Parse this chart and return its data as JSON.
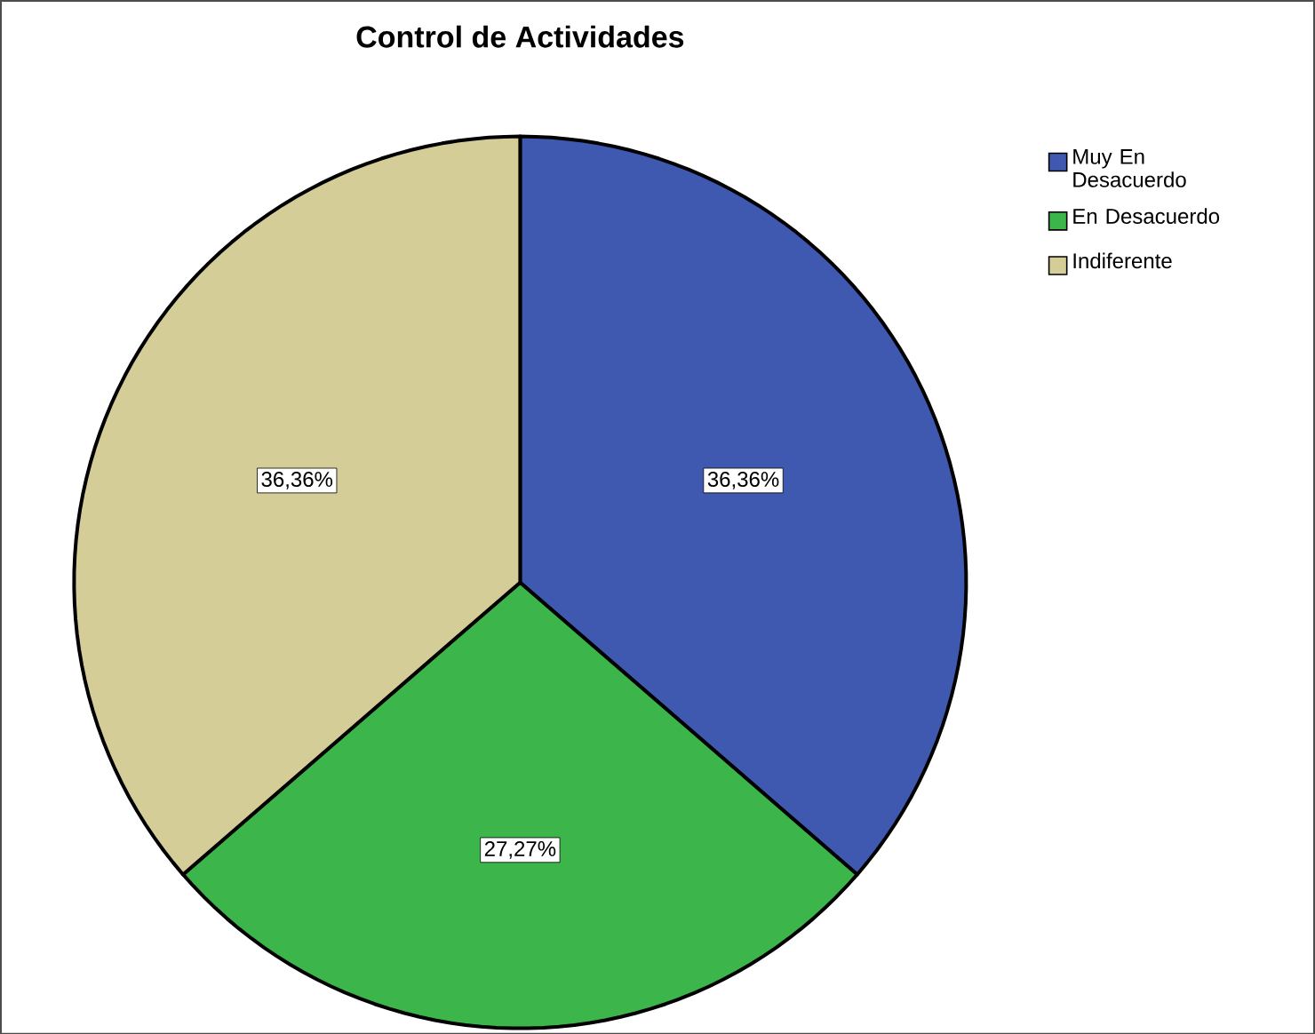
{
  "chart_data": {
    "type": "pie",
    "title": "Control de Actividades",
    "categories": [
      "Muy En Desacuerdo",
      "En Desacuerdo",
      "Indiferente"
    ],
    "values": [
      36.36,
      27.27,
      36.36
    ],
    "colors": [
      "#3f58b0",
      "#3cb54a",
      "#d4cd98"
    ],
    "value_labels": [
      "36,36%",
      "27,27%",
      "36,36%"
    ],
    "legend": "top right"
  }
}
